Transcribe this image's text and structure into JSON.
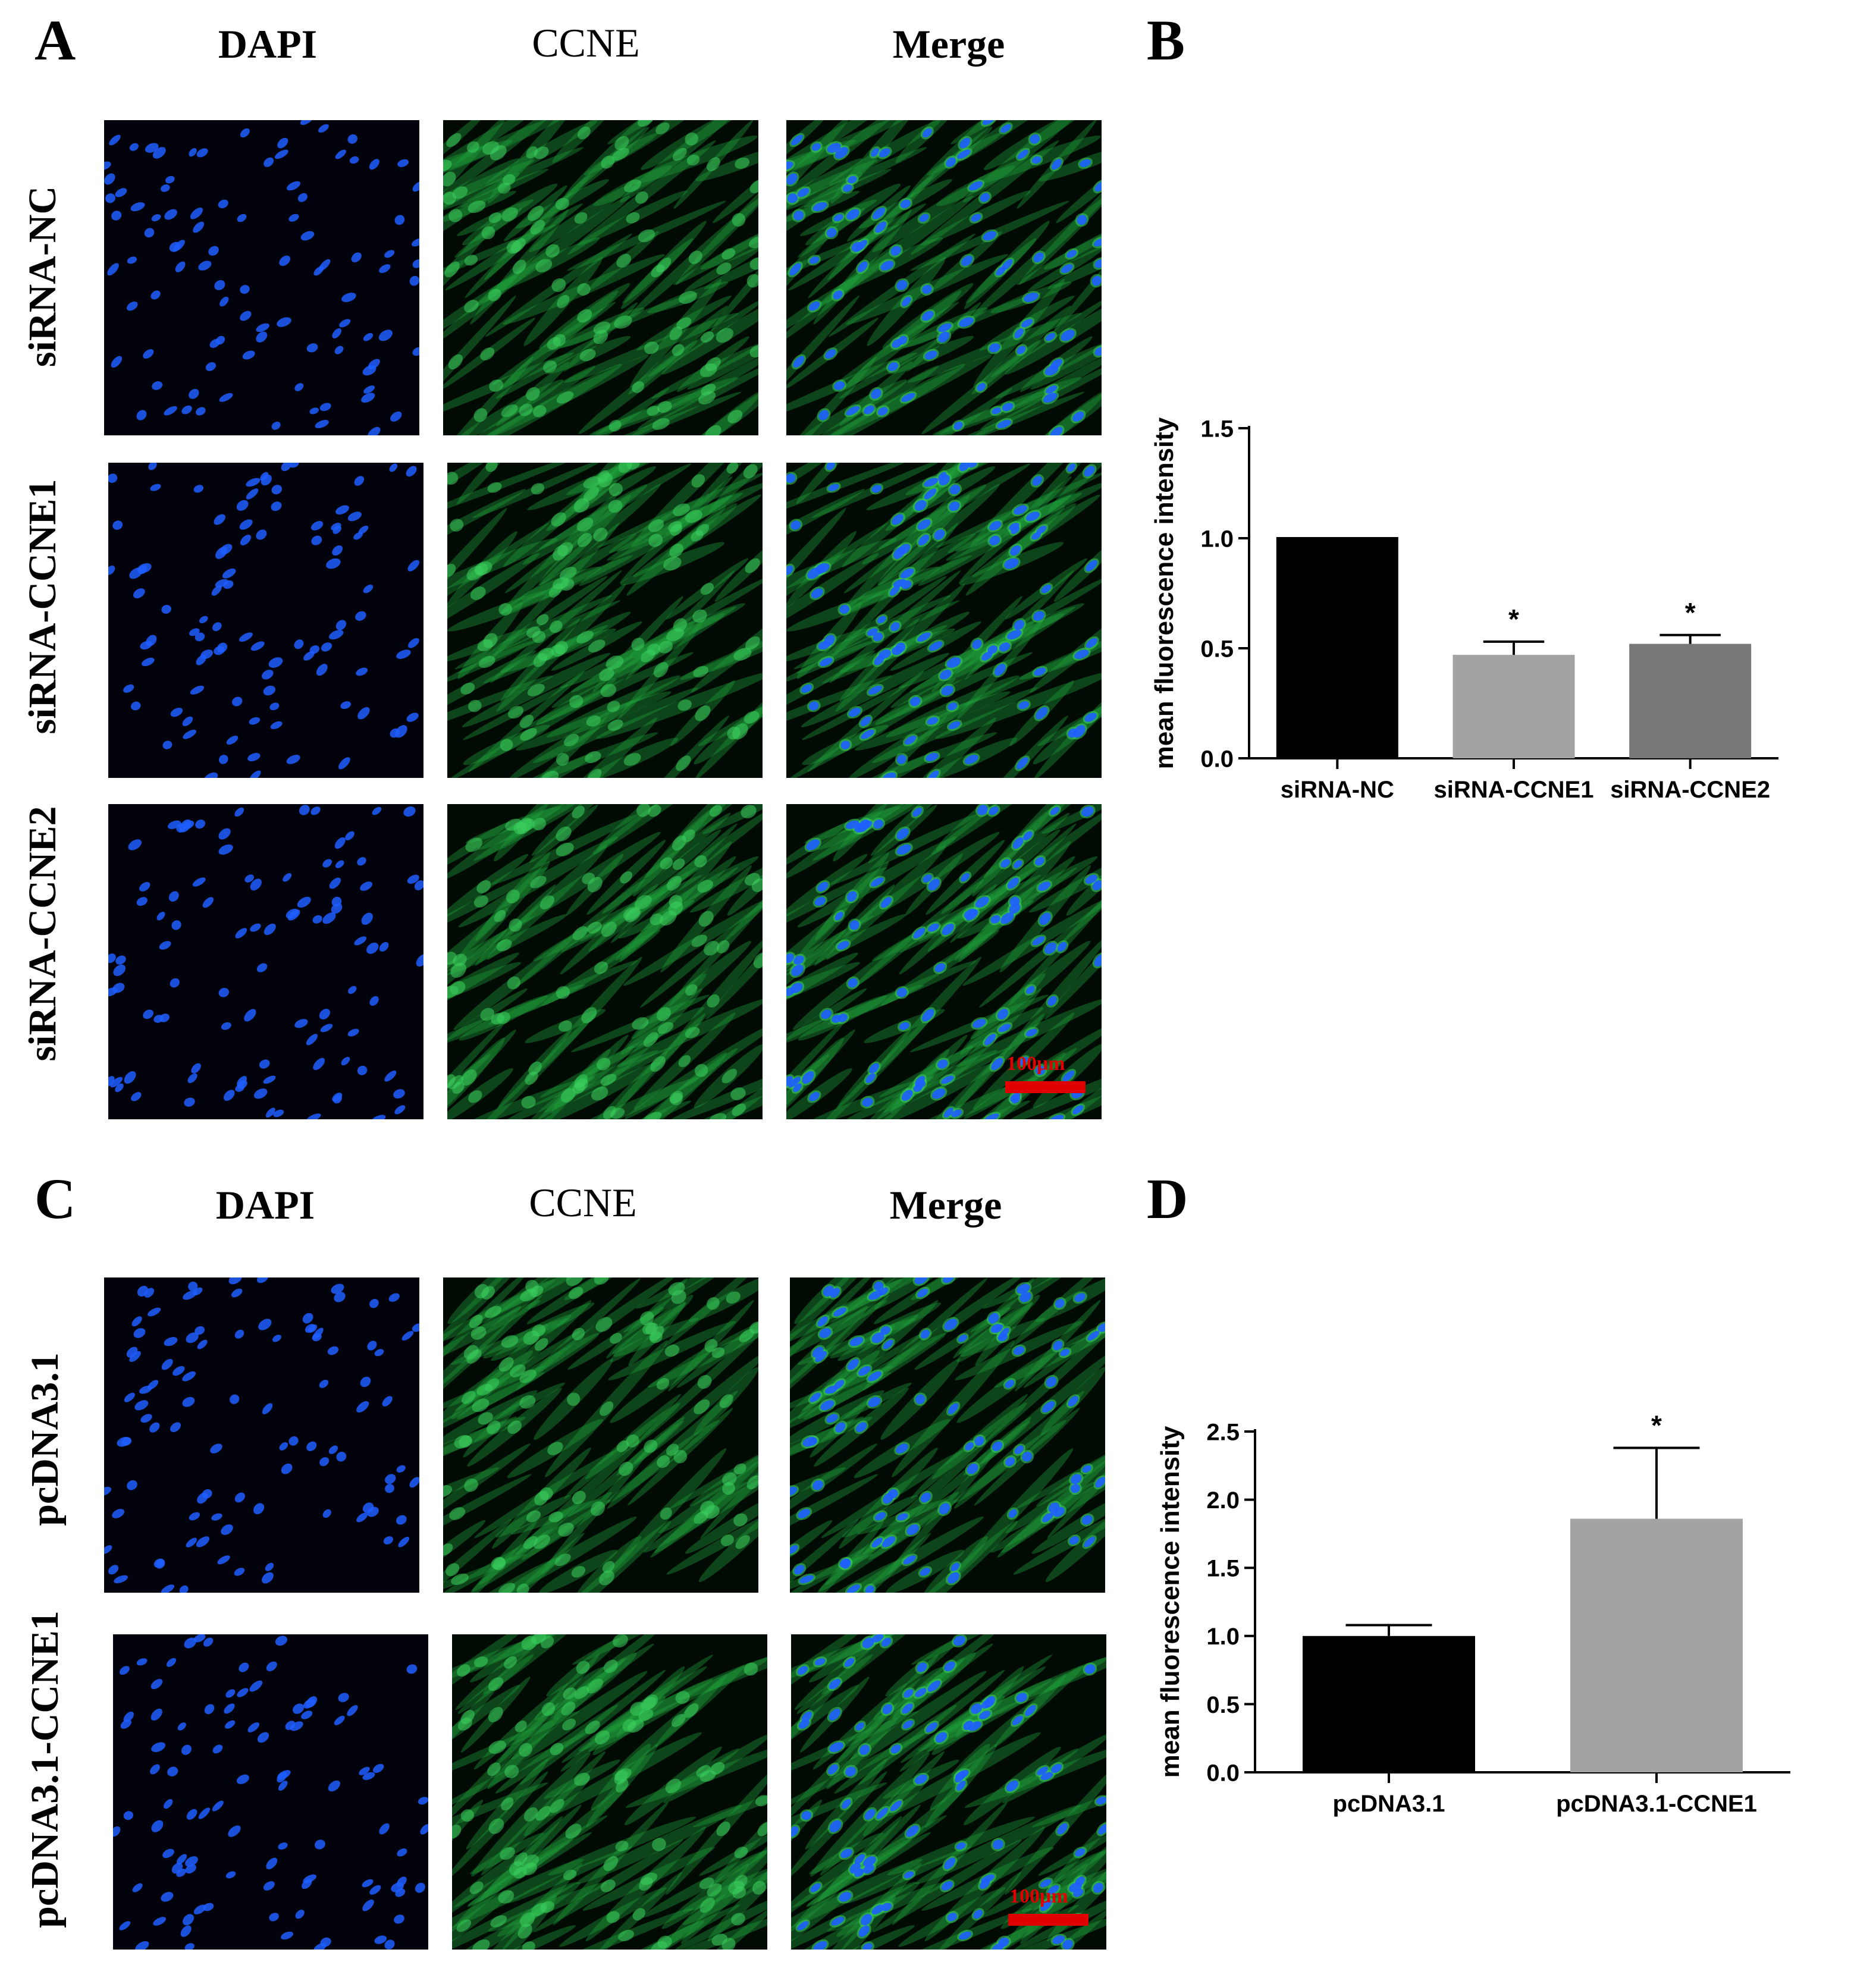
{
  "panels": {
    "A": {
      "letter": "A",
      "columns": [
        "DAPI",
        "CCNE",
        "Merge"
      ],
      "rows": [
        "siRNA-NC",
        "siRNA-CCNE1",
        "siRNA-CCNE2"
      ],
      "scale_bar": "100μm"
    },
    "B": {
      "letter": "B"
    },
    "C": {
      "letter": "C",
      "columns": [
        "DAPI",
        "CCNE",
        "Merge"
      ],
      "rows": [
        "pcDNA3.1",
        "pcDNA3.1-CCNE1"
      ],
      "scale_bar": "100μm"
    },
    "D": {
      "letter": "D"
    }
  },
  "colors": {
    "nucleus": "#1e5eff",
    "cytoplasm": "#1fa23c",
    "scale_bar": "#e00000",
    "bar_black": "#000000",
    "bar_light_gray": "#a3a3a3",
    "bar_dark_gray": "#76787a"
  },
  "chart_data": [
    {
      "type": "bar",
      "panel": "B",
      "categories": [
        "siRNA-NC",
        "siRNA-CCNE1",
        "siRNA-CCNE2"
      ],
      "values": [
        1.0,
        0.47,
        0.52
      ],
      "errors": [
        0.0,
        0.06,
        0.04
      ],
      "significance": [
        "",
        "*",
        "*"
      ],
      "bar_colors": [
        "#000000",
        "#a3a3a3",
        "#76787a"
      ],
      "ylabel": "mean fluorescence intensity",
      "xlabel": "",
      "ylim": [
        0,
        1.5
      ],
      "yticks": [
        "0.0",
        "0.5",
        "1.0",
        "1.5"
      ],
      "grid": false
    },
    {
      "type": "bar",
      "panel": "D",
      "categories": [
        "pcDNA3.1",
        "pcDNA3.1-CCNE1"
      ],
      "values": [
        1.0,
        1.86
      ],
      "errors": [
        0.08,
        0.52
      ],
      "significance": [
        "",
        "*"
      ],
      "bar_colors": [
        "#000000",
        "#a3a3a3"
      ],
      "ylabel": "mean fluorescence intensity",
      "xlabel": "",
      "ylim": [
        0,
        2.5
      ],
      "yticks": [
        "0.0",
        "0.5",
        "1.0",
        "1.5",
        "2.0",
        "2.5"
      ],
      "grid": false
    }
  ]
}
